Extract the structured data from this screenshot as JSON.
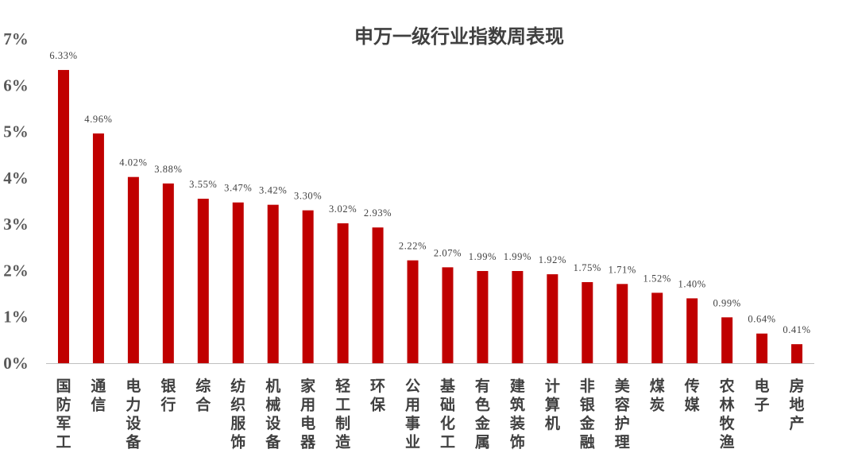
{
  "chart_data": {
    "type": "bar",
    "title": "申万一级行业指数周表现",
    "categories": [
      "国防军工",
      "通信",
      "电力设备",
      "银行",
      "综合",
      "纺织服饰",
      "机械设备",
      "家用电器",
      "轻工制造",
      "环保",
      "公用事业",
      "基础化工",
      "有色金属",
      "建筑装饰",
      "计算机",
      "非银金融",
      "美容护理",
      "煤炭",
      "传媒",
      "农林牧渔",
      "电子",
      "房地产"
    ],
    "values": [
      6.33,
      4.96,
      4.02,
      3.88,
      3.55,
      3.47,
      3.42,
      3.3,
      3.02,
      2.93,
      2.22,
      2.07,
      1.99,
      1.99,
      1.92,
      1.75,
      1.71,
      1.52,
      1.4,
      0.99,
      0.64,
      0.41
    ],
    "data_labels": [
      "6.33%",
      "4.96%",
      "4.02%",
      "3.88%",
      "3.55%",
      "3.47%",
      "3.42%",
      "3.30%",
      "3.02%",
      "2.93%",
      "2.22%",
      "2.07%",
      "1.99%",
      "1.99%",
      "1.92%",
      "1.75%",
      "1.71%",
      "1.52%",
      "1.40%",
      "0.99%",
      "0.64%",
      "0.41%"
    ],
    "y_ticks": [
      0,
      1,
      2,
      3,
      4,
      5,
      6,
      7
    ],
    "y_tick_labels": [
      "0%",
      "1%",
      "2%",
      "3%",
      "4%",
      "5%",
      "6%",
      "7%"
    ],
    "ylim": [
      0,
      7
    ],
    "grid": false,
    "legend": "none",
    "bar_color": "#C00000",
    "axis_color": "#BFBFBF",
    "text_color": "#404040"
  }
}
